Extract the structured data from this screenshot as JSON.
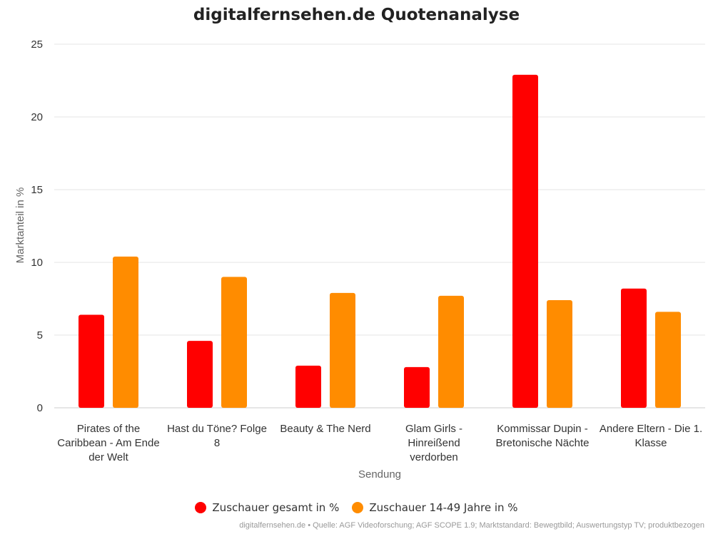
{
  "chart_data": {
    "type": "bar",
    "title": "digitalfernsehen.de Quotenanalyse",
    "xlabel": "Sendung",
    "ylabel": "Marktanteil in %",
    "ylim": [
      0,
      25
    ],
    "yticks": [
      0,
      5,
      10,
      15,
      20,
      25
    ],
    "grid": true,
    "legend_position": "bottom",
    "categories": [
      [
        "Pirates of the",
        "Caribbean - Am Ende",
        "der Welt"
      ],
      [
        "Hast du Töne? Folge",
        "8"
      ],
      [
        "Beauty & The Nerd"
      ],
      [
        "Glam Girls -",
        "Hinreißend",
        "verdorben"
      ],
      [
        "Kommissar Dupin -",
        "Bretonische Nächte"
      ],
      [
        "Andere Eltern - Die 1.",
        "Klasse"
      ]
    ],
    "series": [
      {
        "name": "Zuschauer gesamt in %",
        "color": "#ff0000",
        "values": [
          6.4,
          4.6,
          2.9,
          2.8,
          22.9,
          8.2
        ]
      },
      {
        "name": "Zuschauer 14-49 Jahre in %",
        "color": "#ff8c00",
        "values": [
          10.4,
          9.0,
          7.9,
          7.7,
          7.4,
          6.6
        ]
      }
    ]
  },
  "credits": "digitalfernsehen.de • Quelle: AGF Videoforschung; AGF SCOPE 1.9; Marktstandard: Bewegtbild; Auswertungstyp TV; produktbezogen"
}
